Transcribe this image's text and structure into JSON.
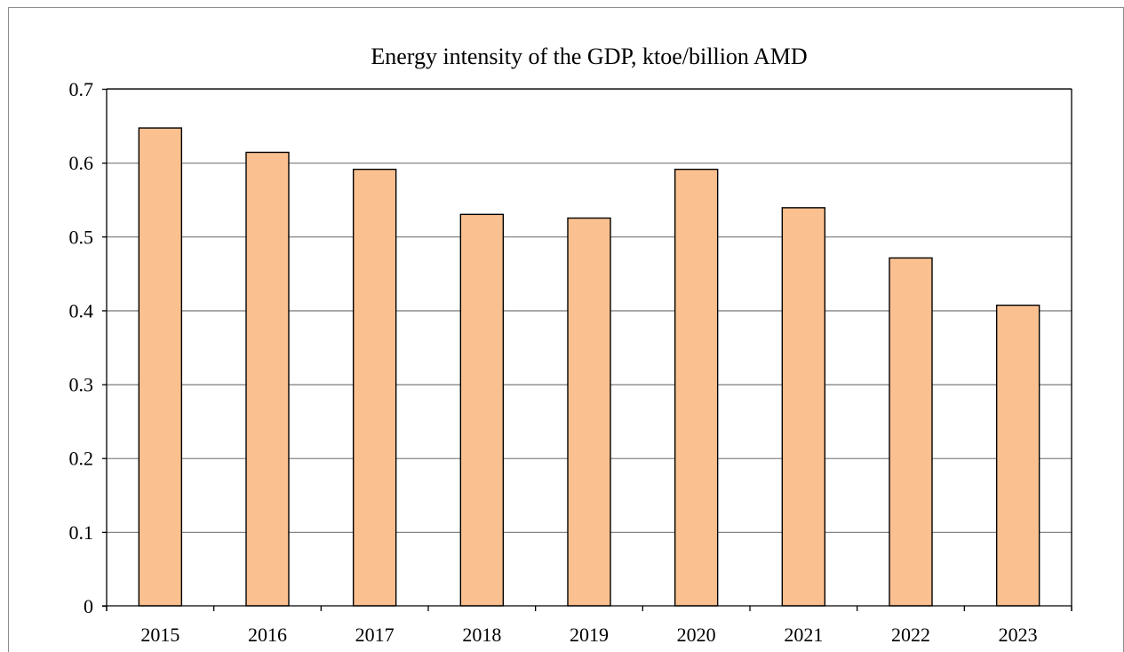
{
  "colors": {
    "bar_fill": "#FAC090",
    "bar_stroke": "#000000",
    "gridline": "#868686",
    "axis": "#000000",
    "frame": "#8c8c8c"
  },
  "chart_data": {
    "type": "bar",
    "title": "Energy intensity of the GDP, ktoe/billion AMD",
    "xlabel": "",
    "ylabel": "",
    "categories": [
      "2015",
      "2016",
      "2017",
      "2018",
      "2019",
      "2020",
      "2021",
      "2022",
      "2023"
    ],
    "values": [
      0.647,
      0.614,
      0.591,
      0.53,
      0.525,
      0.591,
      0.539,
      0.471,
      0.407
    ],
    "ylim": [
      0,
      0.7
    ],
    "yticks": [
      0,
      0.1,
      0.2,
      0.3,
      0.4,
      0.5,
      0.6,
      0.7
    ],
    "ytick_labels": [
      "0",
      "0.1",
      "0.2",
      "0.3",
      "0.4",
      "0.5",
      "0.6",
      "0.7"
    ],
    "grid": true,
    "legend": "none"
  }
}
